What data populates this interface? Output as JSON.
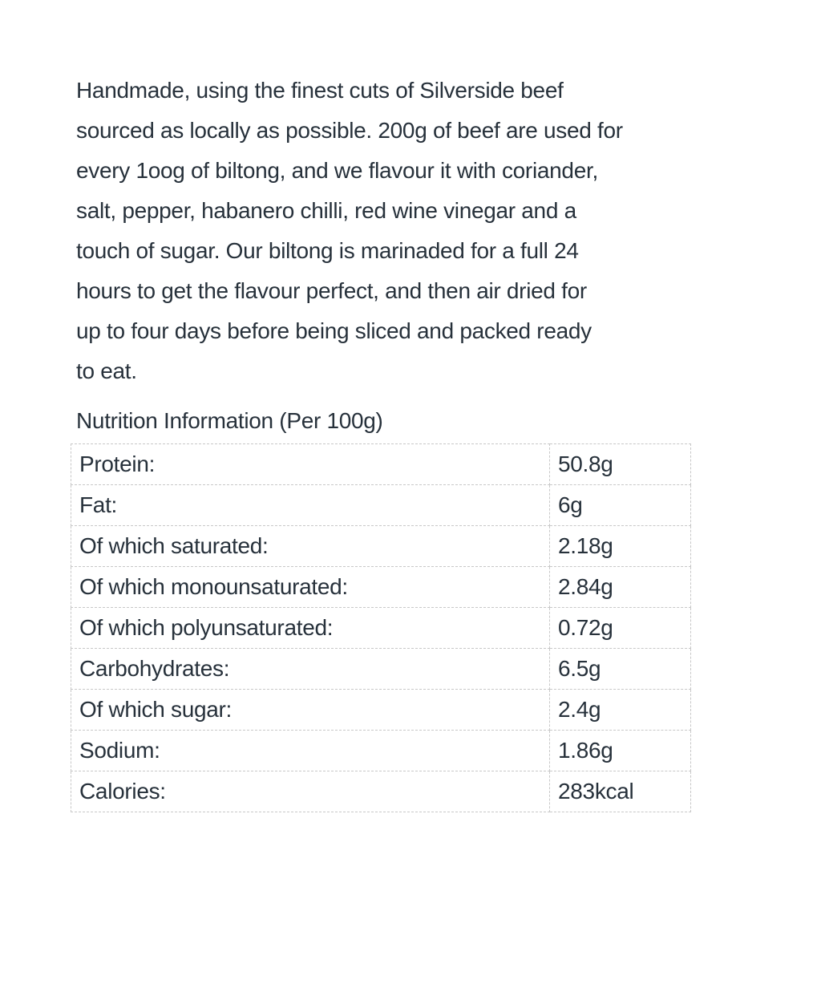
{
  "description_lines": [
    "Handmade, using the finest cuts of Silverside beef",
    "sourced as locally as possible. 200g of beef are used for",
    "every 1oog of biltong, and we flavour it with coriander,",
    "salt, pepper, habanero chilli, red wine vinegar and a",
    "touch of sugar.  Our biltong is marinaded for a full 24",
    "hours to get the flavour perfect, and then air dried for",
    "up to four days before being sliced and packed ready",
    "to eat."
  ],
  "nutrition": {
    "heading": "Nutrition Information (Per 100g)",
    "rows": [
      {
        "label": "Protein:",
        "value": "50.8g"
      },
      {
        "label": "Fat:",
        "value": "6g"
      },
      {
        "label": "Of which saturated:",
        "value": "2.18g"
      },
      {
        "label": "Of which monounsaturated:",
        "value": "2.84g"
      },
      {
        "label": "Of which polyunsaturated:",
        "value": "0.72g"
      },
      {
        "label": "Carbohydrates:",
        "value": "6.5g"
      },
      {
        "label": "Of which sugar:",
        "value": "2.4g"
      },
      {
        "label": "Sodium:",
        "value": "1.86g"
      },
      {
        "label": "Calories:",
        "value": "283kcal"
      }
    ]
  }
}
